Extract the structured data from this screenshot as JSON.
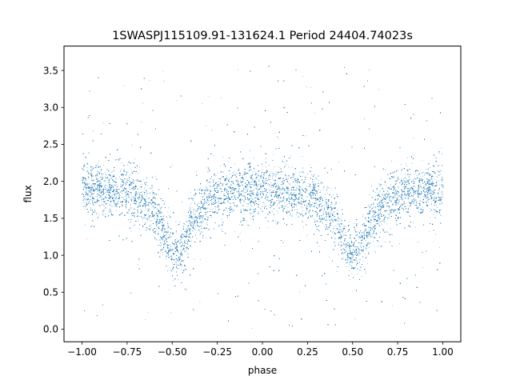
{
  "chart_data": {
    "type": "scatter",
    "title": "1SWASPJ115109.91-131624.1 Period 24404.74023s",
    "xlabel": "phase",
    "ylabel": "flux",
    "xlim": [
      -1.1,
      1.1
    ],
    "ylim": [
      -0.17,
      3.83
    ],
    "x_ticks": [
      -1.0,
      -0.75,
      -0.5,
      -0.25,
      0.0,
      0.25,
      0.5,
      0.75,
      1.0
    ],
    "x_tick_labels": [
      "−1.00",
      "−0.75",
      "−0.50",
      "−0.25",
      "0.00",
      "0.25",
      "0.50",
      "0.75",
      "1.00"
    ],
    "y_ticks": [
      0.0,
      0.5,
      1.0,
      1.5,
      2.0,
      2.5,
      3.0,
      3.5
    ],
    "y_tick_labels": [
      "0.0",
      "0.5",
      "1.0",
      "1.5",
      "2.0",
      "2.5",
      "3.0",
      "3.5"
    ],
    "grid": false,
    "marker_color": "#1f77b4",
    "series": [
      {
        "x": [
          -1.0,
          -0.9,
          -0.8,
          -0.7,
          -0.6,
          -0.55,
          -0.5,
          -0.45,
          -0.4,
          -0.3,
          -0.2,
          -0.1,
          0.0,
          0.1,
          0.2,
          0.3,
          0.4,
          0.45,
          0.5,
          0.55,
          0.6,
          0.7,
          0.8,
          0.9,
          1.0
        ],
        "y": [
          1.9,
          1.9,
          1.88,
          1.8,
          1.6,
          1.3,
          1.0,
          1.05,
          1.4,
          1.75,
          1.85,
          1.88,
          1.9,
          1.85,
          1.85,
          1.75,
          1.5,
          1.2,
          0.98,
          1.1,
          1.45,
          1.75,
          1.85,
          1.88,
          1.9
        ],
        "spread": 0.17,
        "outlier_range": [
          0.0,
          3.6
        ],
        "point_count": 26000
      }
    ]
  }
}
